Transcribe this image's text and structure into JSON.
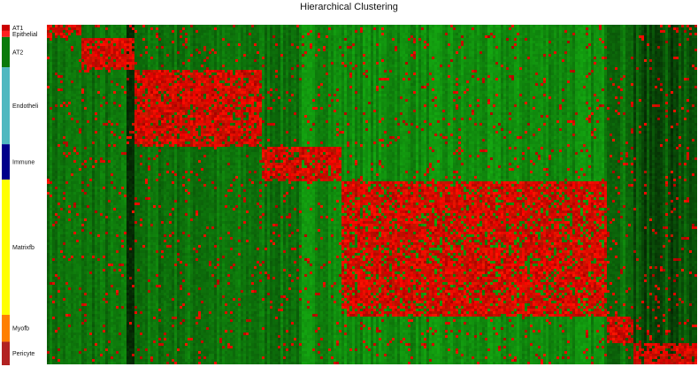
{
  "chart_data": {
    "type": "heatmap",
    "title": "Hierarchical Clustering",
    "row_groups": [
      {
        "label": "AT1",
        "color": "#cc0000"
      },
      {
        "label": "Epithelial",
        "color": "#ff2020"
      },
      {
        "label": "AT2",
        "color": "#0a7a0a"
      },
      {
        "label": "Endotheli",
        "color": "#4fb8c0"
      },
      {
        "label": "Immune",
        "color": "#00008b"
      },
      {
        "label": "Matrixfb",
        "color": "#ffff00"
      },
      {
        "label": "Myofb",
        "color": "#ff7f00"
      },
      {
        "label": "Pericyte",
        "color": "#b22222"
      }
    ],
    "row_group_fractions": [
      0.018,
      0.018,
      0.089,
      0.226,
      0.104,
      0.397,
      0.079,
      0.069
    ],
    "color_scale": {
      "low": "#006400",
      "mid": "#1a5a1a",
      "high": "#ff0000"
    },
    "blocks": [
      {
        "group": "AT1",
        "col_start": 0.0,
        "col_end": 0.05,
        "level": 0.9
      },
      {
        "group": "Epithelial",
        "col_start": 0.0,
        "col_end": 0.05,
        "level": 0.7
      },
      {
        "group": "AT2",
        "col_start": 0.05,
        "col_end": 0.134,
        "level": 0.9
      },
      {
        "group": "Endotheli",
        "col_start": 0.134,
        "col_end": 0.33,
        "level": 0.85
      },
      {
        "group": "Immune",
        "col_start": 0.33,
        "col_end": 0.45,
        "level": 0.85
      },
      {
        "group": "Matrixfb",
        "col_start": 0.45,
        "col_end": 0.86,
        "level": 0.8
      },
      {
        "group": "Myofb",
        "col_start": 0.86,
        "col_end": 0.9,
        "level": 0.9
      },
      {
        "group": "Pericyte",
        "col_start": 0.9,
        "col_end": 1.0,
        "level": 0.85
      }
    ]
  }
}
